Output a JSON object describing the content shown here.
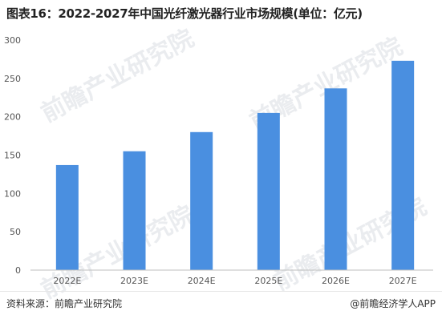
{
  "title": "图表16：2022-2027年中国光纤激光器行业市场规模(单位：亿元)",
  "footer": {
    "source": "资料来源：前瞻产业研究院",
    "credit": "@前瞻经济学人APP"
  },
  "watermark": "前瞻产业研究院",
  "colors": {
    "bar": "#4a8fe0",
    "axis": "#bfbfbf",
    "grid": "#f0f0f0"
  },
  "chart_data": {
    "type": "bar",
    "title": "图表16：2022-2027年中国光纤激光器行业市场规模(单位：亿元)",
    "categories": [
      "2022E",
      "2023E",
      "2024E",
      "2025E",
      "2026E",
      "2027E"
    ],
    "values": [
      137,
      155,
      180,
      205,
      237,
      273
    ],
    "ylim": [
      0,
      300
    ],
    "yticks": [
      0,
      50,
      100,
      150,
      200,
      250,
      300
    ],
    "xlabel": "",
    "ylabel": "",
    "grid": false,
    "legend": "none"
  }
}
